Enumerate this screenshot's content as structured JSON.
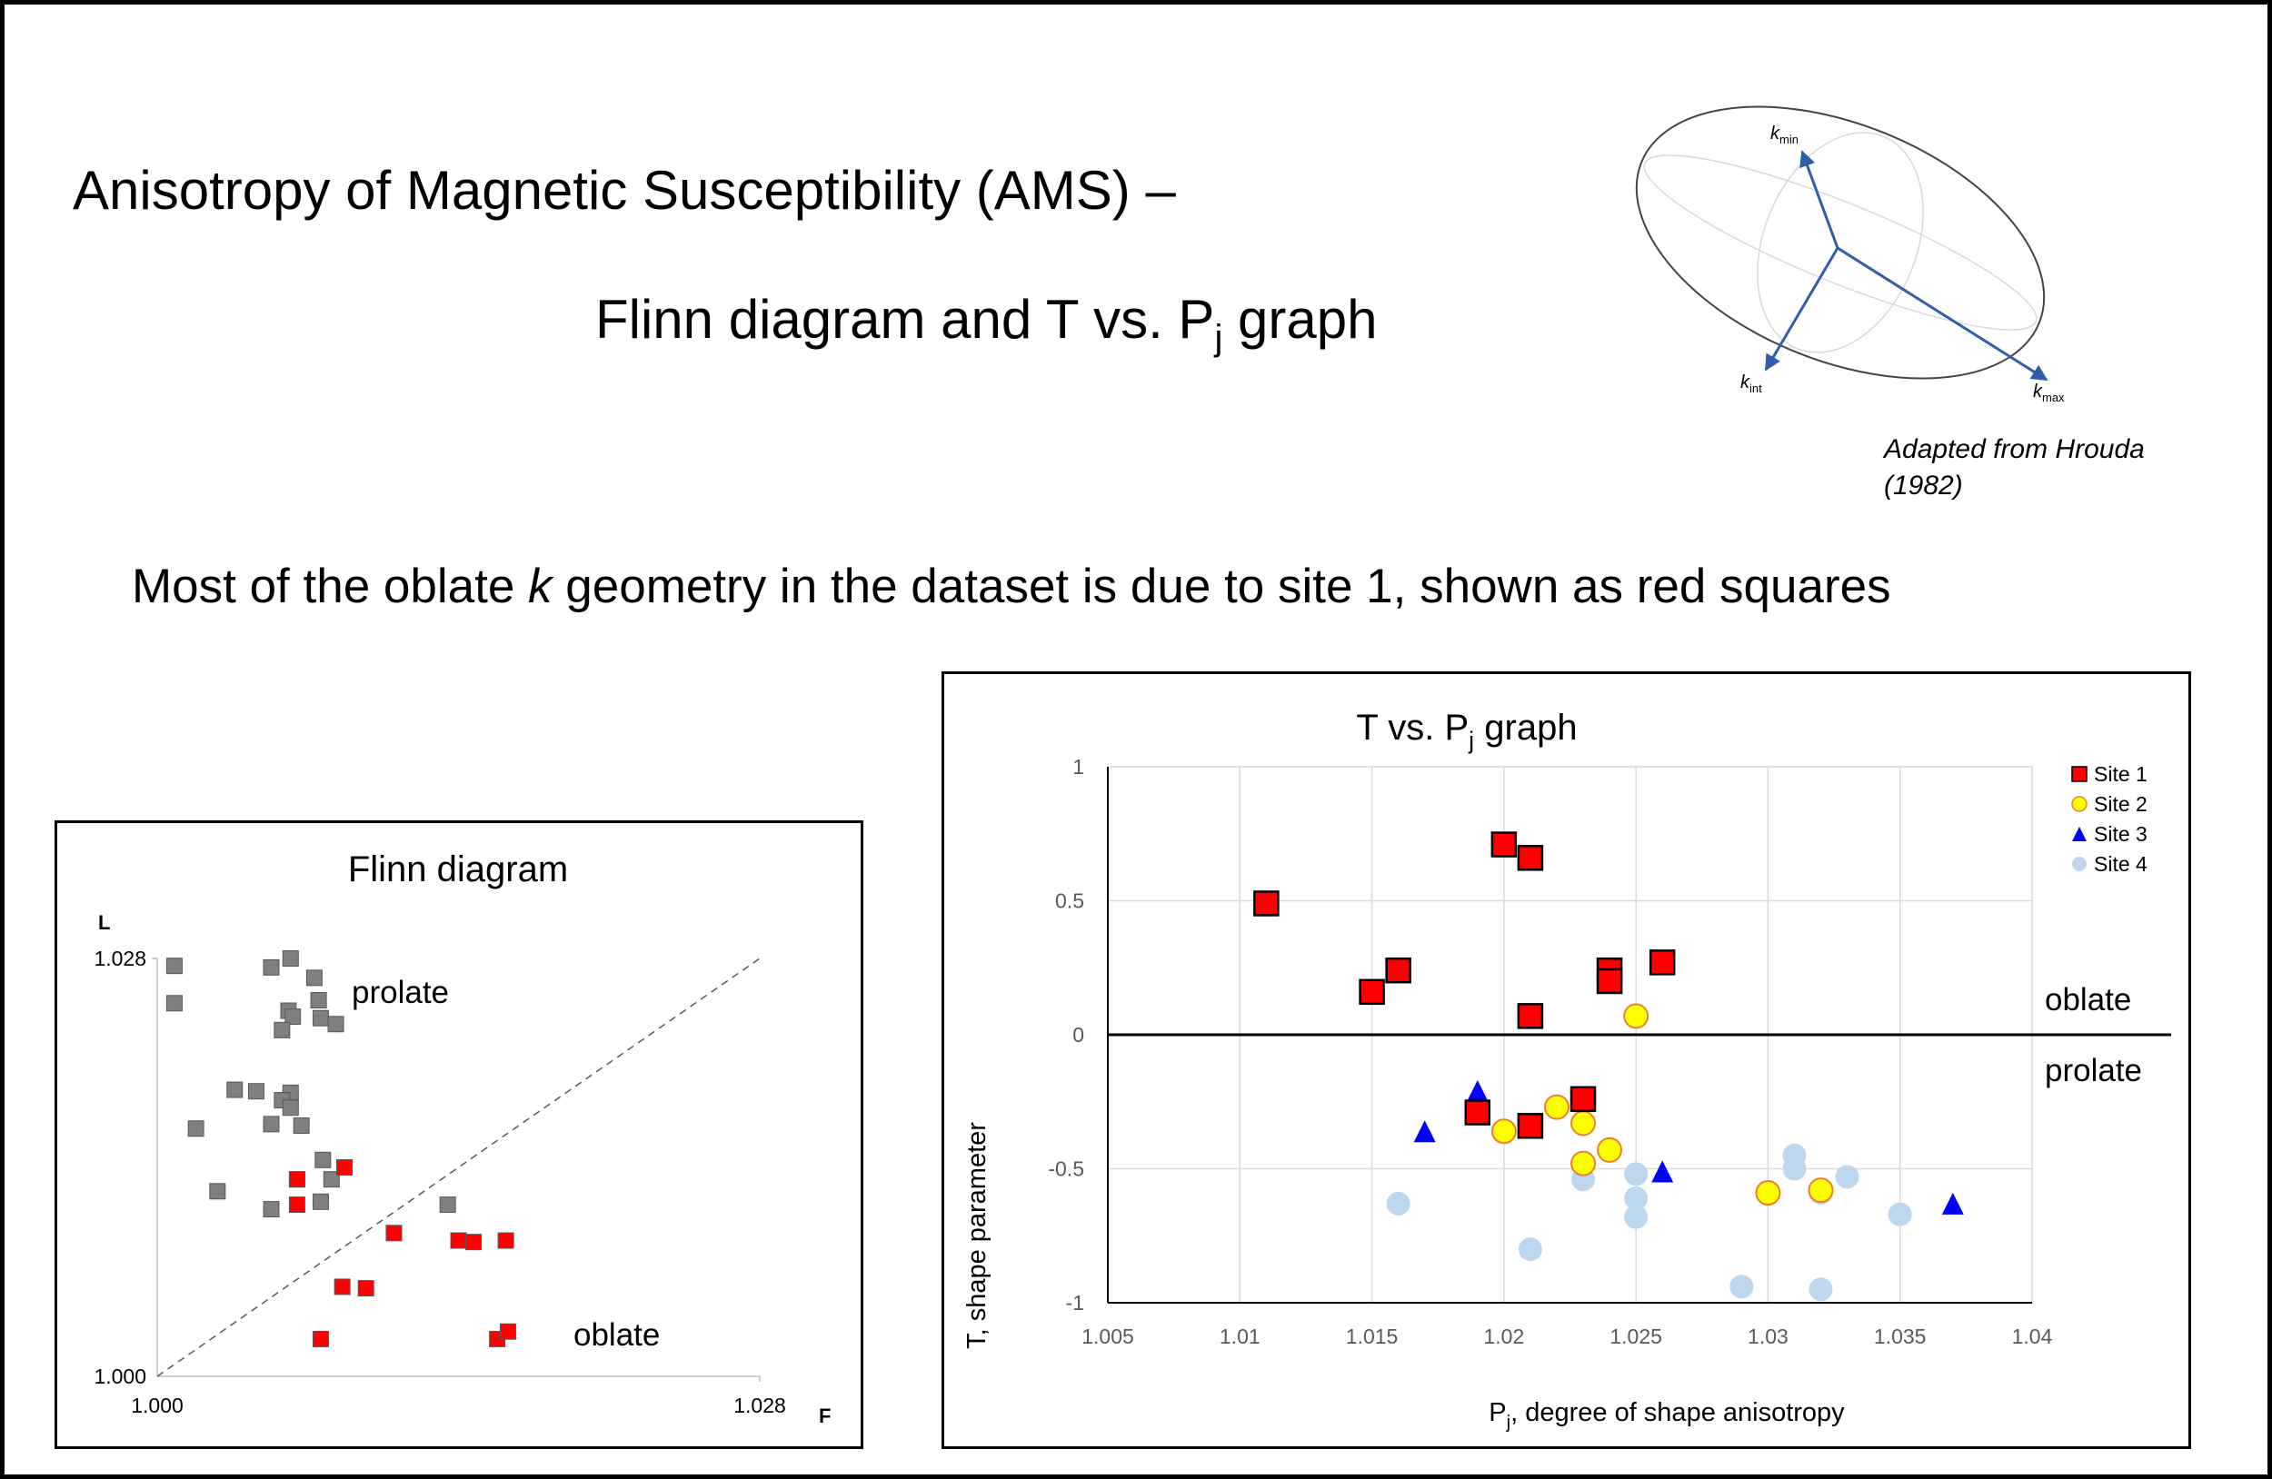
{
  "title": {
    "line1": "Anisotropy of Magnetic Susceptibility (AMS) –",
    "line2_main": "Flinn diagram and T vs. P",
    "line2_sub": "j",
    "line2_tail": " graph"
  },
  "subtitle": {
    "before": "Most of the oblate ",
    "italic": "k",
    "after": " geometry in the dataset is due to site 1, shown as red squares"
  },
  "ellipsoid": {
    "axis_color": "#2e5fa8",
    "labels": [
      {
        "main": "k",
        "sub": "min"
      },
      {
        "main": "k",
        "sub": "int"
      },
      {
        "main": "k",
        "sub": "max"
      }
    ]
  },
  "attribution": "Adapted from Hrouda (1982)",
  "chart_data": [
    {
      "type": "scatter",
      "title": "Flinn diagram",
      "xlabel": "F",
      "ylabel": "L",
      "xlim": [
        1.0,
        1.028
      ],
      "ylim": [
        1.0,
        1.028
      ],
      "x_ticks": [
        "1.000",
        "1.028"
      ],
      "y_ticks": [
        "1.000",
        "1.028"
      ],
      "reference_line": "1:1 dashed",
      "annotations": [
        "prolate",
        "oblate"
      ],
      "series": [
        {
          "color": "#7f7f7f",
          "points": [
            [
              1.0008,
              1.0275
            ],
            [
              1.0008,
              1.025
            ],
            [
              1.0053,
              1.0274
            ],
            [
              1.0062,
              1.028
            ],
            [
              1.0073,
              1.0267
            ],
            [
              1.0061,
              1.0245
            ],
            [
              1.0063,
              1.0241
            ],
            [
              1.0058,
              1.0232
            ],
            [
              1.0075,
              1.0252
            ],
            [
              1.0076,
              1.024
            ],
            [
              1.0083,
              1.0236
            ],
            [
              1.0036,
              1.0192
            ],
            [
              1.0046,
              1.0191
            ],
            [
              1.0062,
              1.019
            ],
            [
              1.0058,
              1.0185
            ],
            [
              1.0062,
              1.018
            ],
            [
              1.0053,
              1.0169
            ],
            [
              1.0067,
              1.0168
            ],
            [
              1.0018,
              1.0166
            ],
            [
              1.0077,
              1.0145
            ],
            [
              1.0065,
              1.0132
            ],
            [
              1.0081,
              1.0132
            ],
            [
              1.0028,
              1.0124
            ],
            [
              1.0076,
              1.0117
            ],
            [
              1.0053,
              1.0112
            ],
            [
              1.0135,
              1.0115
            ]
          ]
        },
        {
          "color": "#ff0000",
          "points": [
            [
              1.0065,
              1.0132
            ],
            [
              1.0087,
              1.014
            ],
            [
              1.0065,
              1.0115
            ],
            [
              1.011,
              1.0096
            ],
            [
              1.014,
              1.0091
            ],
            [
              1.0147,
              1.009
            ],
            [
              1.0162,
              1.0091
            ],
            [
              1.0086,
              1.006
            ],
            [
              1.0097,
              1.0059
            ],
            [
              1.0076,
              1.0025
            ],
            [
              1.0158,
              1.0025
            ],
            [
              1.0163,
              1.003
            ]
          ]
        }
      ]
    },
    {
      "type": "scatter",
      "title_main": "T vs. P",
      "title_sub": "j",
      "title_tail": " graph",
      "xlabel_main": "P",
      "xlabel_sub": "j",
      "xlabel_tail": ", degree of shape anisotropy",
      "ylabel": "T, shape parameter",
      "xlim": [
        1.005,
        1.04
      ],
      "ylim": [
        -1,
        1
      ],
      "x_ticks": [
        "1.005",
        "1.01",
        "1.015",
        "1.02",
        "1.025",
        "1.03",
        "1.035",
        "1.04"
      ],
      "y_ticks": [
        "-1",
        "-0.5",
        "0",
        "0.5",
        "1"
      ],
      "grid": true,
      "legend_position": "top-right",
      "annotations": [
        "oblate",
        "prolate"
      ],
      "series": [
        {
          "name": "Site 1",
          "marker": "square",
          "color": "#ff0000",
          "points": [
            [
              1.011,
              0.49
            ],
            [
              1.015,
              0.16
            ],
            [
              1.016,
              0.24
            ],
            [
              1.02,
              0.71
            ],
            [
              1.021,
              0.66
            ],
            [
              1.021,
              0.07
            ],
            [
              1.024,
              0.24
            ],
            [
              1.024,
              0.2
            ],
            [
              1.026,
              0.27
            ],
            [
              1.019,
              -0.29
            ],
            [
              1.021,
              -0.34
            ],
            [
              1.023,
              -0.24
            ]
          ]
        },
        {
          "name": "Site 2",
          "marker": "circle",
          "color": "#ffff00",
          "points": [
            [
              1.025,
              0.07
            ],
            [
              1.02,
              -0.36
            ],
            [
              1.022,
              -0.27
            ],
            [
              1.023,
              -0.33
            ],
            [
              1.023,
              -0.48
            ],
            [
              1.024,
              -0.43
            ],
            [
              1.03,
              -0.59
            ],
            [
              1.032,
              -0.58
            ]
          ]
        },
        {
          "name": "Site 3",
          "marker": "triangle",
          "color": "#0000ff",
          "points": [
            [
              1.017,
              -0.36
            ],
            [
              1.019,
              -0.21
            ],
            [
              1.026,
              -0.51
            ],
            [
              1.037,
              -0.63
            ]
          ]
        },
        {
          "name": "Site 4",
          "marker": "circle",
          "color": "#bdd7ee",
          "points": [
            [
              1.016,
              -0.63
            ],
            [
              1.021,
              -0.8
            ],
            [
              1.023,
              -0.54
            ],
            [
              1.025,
              -0.52
            ],
            [
              1.025,
              -0.61
            ],
            [
              1.025,
              -0.68
            ],
            [
              1.029,
              -0.94
            ],
            [
              1.031,
              -0.45
            ],
            [
              1.031,
              -0.5
            ],
            [
              1.032,
              -0.59
            ],
            [
              1.032,
              -0.95
            ],
            [
              1.033,
              -0.53
            ],
            [
              1.035,
              -0.67
            ]
          ]
        }
      ]
    }
  ]
}
